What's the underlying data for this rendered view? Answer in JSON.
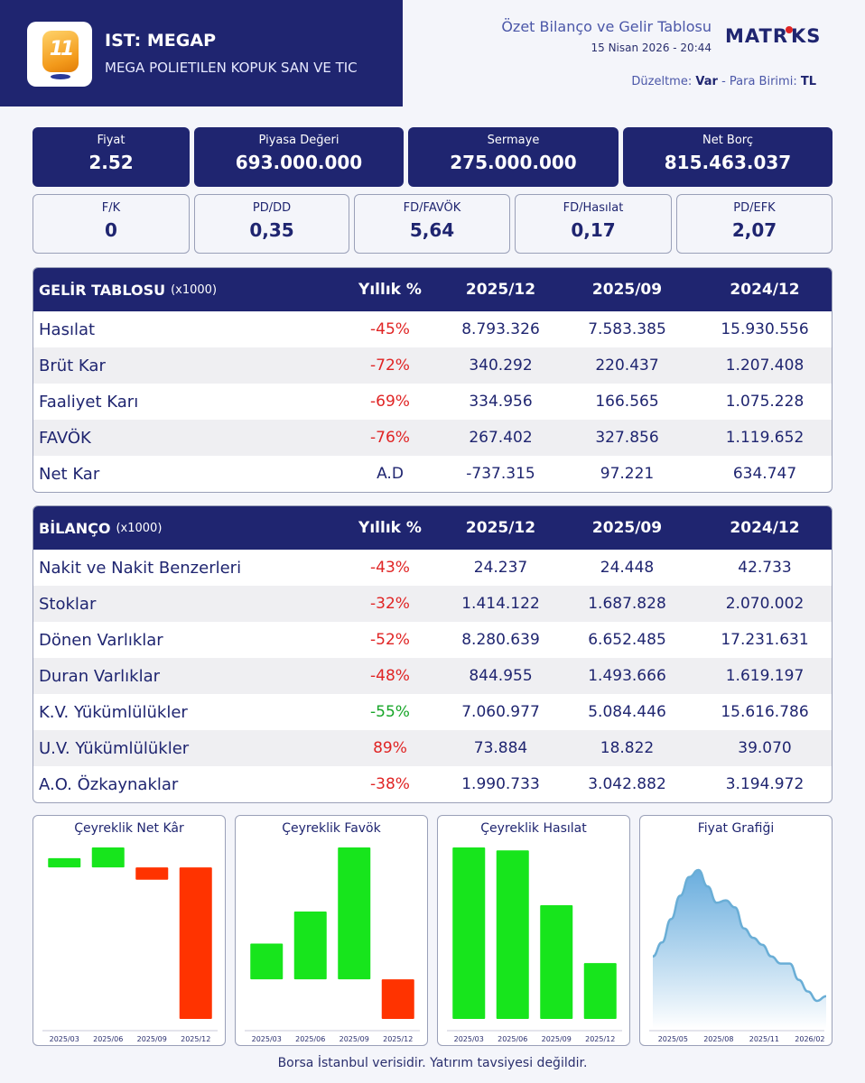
{
  "header": {
    "ticker": "IST: MEGAP",
    "company": "MEGA POLIETILEN KOPUK SAN VE TIC",
    "report_title": "Özet Bilanço ve Gelir Tablosu",
    "report_date": "15 Nisan 2026 - 20:44",
    "brand": "MATRIKS",
    "adjustment_label": "Düzeltme:",
    "adjustment_value": "Var",
    "currency_label": "- Para Birimi:",
    "currency_value": "TL",
    "logo_text": "11"
  },
  "metrics_primary": [
    {
      "label": "Fiyat",
      "value": "2.52"
    },
    {
      "label": "Piyasa Değeri",
      "value": "693.000.000"
    },
    {
      "label": "Sermaye",
      "value": "275.000.000"
    },
    {
      "label": "Net Borç",
      "value": "815.463.037"
    }
  ],
  "metrics_ratios": [
    {
      "label": "F/K",
      "value": "0"
    },
    {
      "label": "PD/DD",
      "value": "0,35"
    },
    {
      "label": "FD/FAVÖK",
      "value": "5,64"
    },
    {
      "label": "FD/Hasılat",
      "value": "0,17"
    },
    {
      "label": "PD/EFK",
      "value": "2,07"
    }
  ],
  "income": {
    "title": "GELİR TABLOSU",
    "unit": "(x1000)",
    "yoy_header": "Yıllık %",
    "periods": [
      "2025/12",
      "2025/09",
      "2024/12"
    ],
    "rows": [
      {
        "name": "Hasılat",
        "yoy": "-45%",
        "tone": "neg",
        "v1": "8.793.326",
        "v2": "7.583.385",
        "v3": "15.930.556"
      },
      {
        "name": "Brüt Kar",
        "yoy": "-72%",
        "tone": "neg",
        "v1": "340.292",
        "v2": "220.437",
        "v3": "1.207.408"
      },
      {
        "name": "Faaliyet Karı",
        "yoy": "-69%",
        "tone": "neg",
        "v1": "334.956",
        "v2": "166.565",
        "v3": "1.075.228"
      },
      {
        "name": "FAVÖK",
        "yoy": "-76%",
        "tone": "neg",
        "v1": "267.402",
        "v2": "327.856",
        "v3": "1.119.652"
      },
      {
        "name": "Net Kar",
        "yoy": "A.D",
        "tone": "na",
        "v1": "-737.315",
        "v2": "97.221",
        "v3": "634.747"
      }
    ]
  },
  "balance": {
    "title": "BİLANÇO",
    "unit": "(x1000)",
    "yoy_header": "Yıllık %",
    "periods": [
      "2025/12",
      "2025/09",
      "2024/12"
    ],
    "rows": [
      {
        "name": "Nakit ve Nakit Benzerleri",
        "yoy": "-43%",
        "tone": "neg",
        "v1": "24.237",
        "v2": "24.448",
        "v3": "42.733"
      },
      {
        "name": "Stoklar",
        "yoy": "-32%",
        "tone": "neg",
        "v1": "1.414.122",
        "v2": "1.687.828",
        "v3": "2.070.002"
      },
      {
        "name": "Dönen Varlıklar",
        "yoy": "-52%",
        "tone": "neg",
        "v1": "8.280.639",
        "v2": "6.652.485",
        "v3": "17.231.631"
      },
      {
        "name": "Duran Varlıklar",
        "yoy": "-48%",
        "tone": "neg",
        "v1": "844.955",
        "v2": "1.493.666",
        "v3": "1.619.197"
      },
      {
        "name": "K.V. Yükümlülükler",
        "yoy": "-55%",
        "tone": "pos",
        "v1": "7.060.977",
        "v2": "5.084.446",
        "v3": "15.616.786"
      },
      {
        "name": "U.V. Yükümlülükler",
        "yoy": "89%",
        "tone": "neg",
        "v1": "73.884",
        "v2": "18.822",
        "v3": "39.070"
      },
      {
        "name": "A.O. Özkaynaklar",
        "yoy": "-38%",
        "tone": "neg",
        "v1": "1.990.733",
        "v2": "3.042.882",
        "v3": "3.194.972"
      }
    ]
  },
  "colors": {
    "navy": "#1f2570",
    "negative": "#e02424",
    "positive": "#17a528",
    "bar_up": "#17e51c",
    "bar_down": "#ff3300",
    "line": "#6aaed6"
  },
  "chart_data": [
    {
      "type": "bar",
      "title": "Çeyreklik Net Kâr",
      "categories": [
        "2025/03",
        "2025/06",
        "2025/09",
        "2025/12"
      ],
      "values": [
        45000,
        97221,
        -60000,
        -737315
      ]
    },
    {
      "type": "bar",
      "title": "Çeyreklik Favök",
      "categories": [
        "2025/03",
        "2025/06",
        "2025/09",
        "2025/12"
      ],
      "values": [
        190000,
        360000,
        700000,
        -210000
      ]
    },
    {
      "type": "bar",
      "title": "Çeyreklik Hasılat",
      "categories": [
        "2025/03",
        "2025/06",
        "2025/09",
        "2025/12"
      ],
      "values": [
        8900000,
        8750000,
        5900000,
        2900000
      ]
    },
    {
      "type": "area",
      "title": "Fiyat Grafiği",
      "x_ticks": [
        "2025/05",
        "2025/08",
        "2025/11",
        "2026/02"
      ],
      "values": [
        3.55,
        3.85,
        4.35,
        4.85,
        5.25,
        5.4,
        5.05,
        4.7,
        4.75,
        4.6,
        4.15,
        3.95,
        3.8,
        3.55,
        3.4,
        3.4,
        3.05,
        2.8,
        2.6,
        2.7
      ]
    }
  ]
}
